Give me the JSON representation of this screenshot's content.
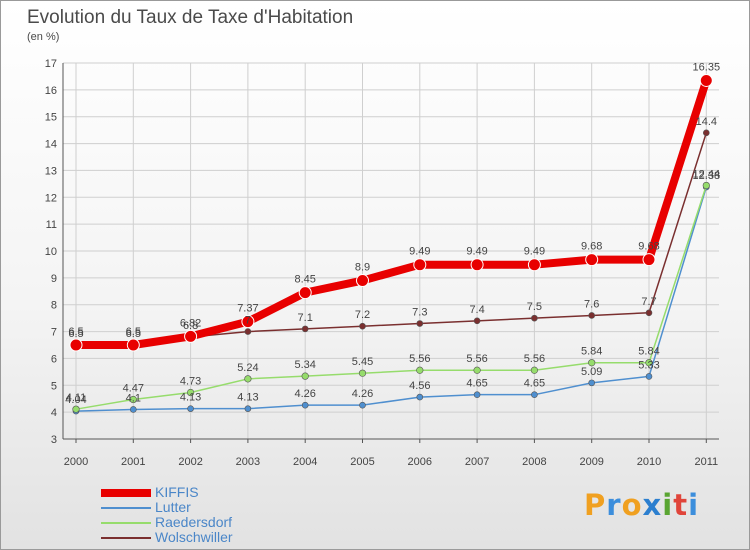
{
  "title": "Evolution du Taux de Taxe d'Habitation",
  "subtitle": "(en %)",
  "brand": {
    "text": "Proxiti",
    "letters": [
      "P",
      "r",
      "o",
      "x",
      "i",
      "t",
      "i"
    ],
    "colors": [
      "#f0a020",
      "#3c8edc",
      "#f0a020",
      "#2c7fcf",
      "#5aa532",
      "#e0453b",
      "#3c8edc"
    ]
  },
  "chart_data": {
    "type": "line",
    "title": "Evolution du Taux de Taxe d'Habitation",
    "ylabel": "(en %)",
    "x": [
      2000,
      2001,
      2002,
      2003,
      2004,
      2005,
      2006,
      2007,
      2008,
      2009,
      2010,
      2011
    ],
    "ylim": [
      3,
      17
    ],
    "yticks": [
      3,
      4,
      5,
      6,
      7,
      8,
      9,
      10,
      11,
      12,
      13,
      14,
      15,
      16,
      17
    ],
    "grid": true,
    "legend_position": "bottom-left",
    "series": [
      {
        "name": "KIFFIS",
        "color": "#e80000",
        "values": [
          6.5,
          6.5,
          6.82,
          7.37,
          8.45,
          8.9,
          9.49,
          9.49,
          9.49,
          9.68,
          9.68,
          16.35
        ],
        "labels": [
          "6.5",
          "6.5",
          "6.82",
          "7.37",
          "8.45",
          "8.9",
          "9.49",
          "9.49",
          "9.49",
          "9.68",
          "9.68",
          "16.35"
        ]
      },
      {
        "name": "Lutter",
        "color": "#4f8fcf",
        "values": [
          4.04,
          4.1,
          4.13,
          4.13,
          4.26,
          4.26,
          4.56,
          4.65,
          4.65,
          5.09,
          5.33,
          12.38
        ],
        "labels": [
          "4.04",
          "4.1",
          "4.13",
          "4.13",
          "4.26",
          "4.26",
          "4.56",
          "4.65",
          "4.65",
          "5.09",
          "5.33",
          "12.38"
        ]
      },
      {
        "name": "Raedersdorf",
        "color": "#96dc6c",
        "values": [
          4.11,
          4.47,
          4.73,
          5.24,
          5.34,
          5.45,
          5.56,
          5.56,
          5.56,
          5.84,
          5.84,
          12.44
        ],
        "labels": [
          "4.11",
          "4.47",
          "4.73",
          "5.24",
          "5.34",
          "5.45",
          "5.56",
          "5.56",
          "5.56",
          "5.84",
          "5.84",
          "12.44"
        ]
      },
      {
        "name": "Wolschwiller",
        "color": "#7a2f2f",
        "values": [
          6.5,
          6.5,
          6.8,
          7.0,
          7.1,
          7.2,
          7.3,
          7.4,
          7.5,
          7.6,
          7.7,
          14.4
        ],
        "labels": [
          "6.5",
          "6.5",
          "6.8",
          "7",
          "7.1",
          "7.2",
          "7.3",
          "7.4",
          "7.5",
          "7.6",
          "7.7",
          "14.4"
        ]
      }
    ]
  }
}
